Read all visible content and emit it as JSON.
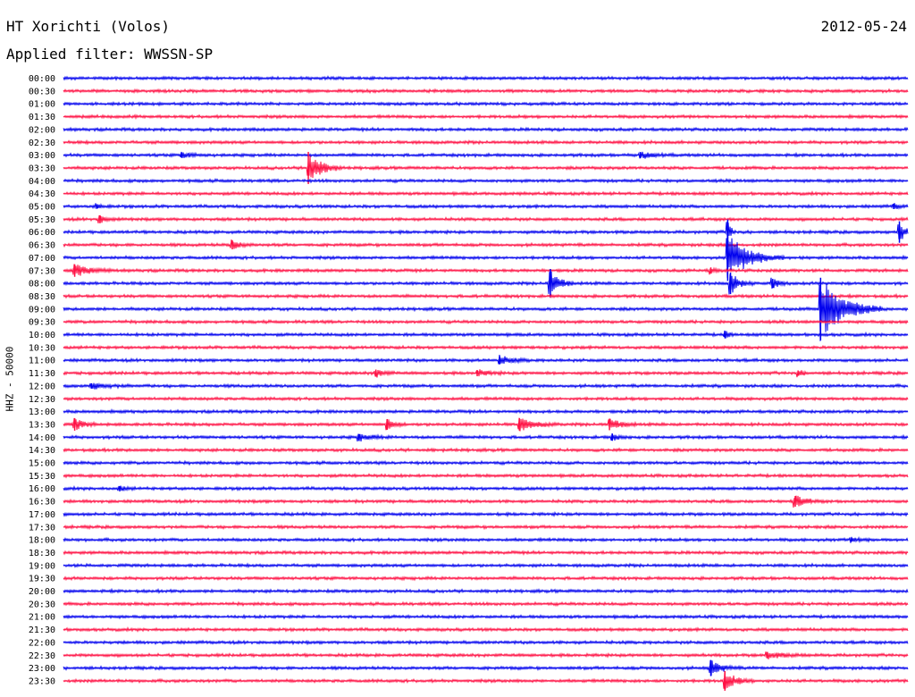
{
  "header": {
    "title": "HT Xorichti (Volos)",
    "date": "2012-05-24",
    "filter": "Applied filter: WWSSN-SP"
  },
  "side_label": "HHZ - 50000",
  "colors": {
    "even_row": "#0000ee",
    "odd_row": "#ff1144",
    "text": "#000000"
  },
  "chart_data": {
    "type": "line",
    "title": "HT Xorichti (Volos)",
    "xlabel": "",
    "ylabel": "HHZ - 50000",
    "rows": [
      "00:00",
      "00:30",
      "01:00",
      "01:30",
      "02:00",
      "02:30",
      "03:00",
      "03:30",
      "04:00",
      "04:30",
      "05:00",
      "05:30",
      "06:00",
      "06:30",
      "07:00",
      "07:30",
      "08:00",
      "08:30",
      "09:00",
      "09:30",
      "10:00",
      "10:30",
      "11:00",
      "11:30",
      "12:00",
      "12:30",
      "13:00",
      "13:30",
      "14:00",
      "14:30",
      "15:00",
      "15:30",
      "16:00",
      "16:30",
      "17:00",
      "17:30",
      "18:00",
      "18:30",
      "19:00",
      "19:30",
      "20:00",
      "20:30",
      "21:00",
      "21:30",
      "22:00",
      "22:30",
      "23:00",
      "23:30"
    ],
    "row_duration_min": 30,
    "grid": false,
    "events": [
      {
        "row": "03:00",
        "minute": 4.2,
        "amplitude": 0.3,
        "duration": 1.0
      },
      {
        "row": "03:00",
        "minute": 20.5,
        "amplitude": 0.35,
        "duration": 1.2
      },
      {
        "row": "03:30",
        "minute": 8.7,
        "amplitude": 1.8,
        "duration": 1.2
      },
      {
        "row": "05:00",
        "minute": 1.2,
        "amplitude": 0.25,
        "duration": 0.5
      },
      {
        "row": "05:00",
        "minute": 29.5,
        "amplitude": 0.3,
        "duration": 0.5
      },
      {
        "row": "05:30",
        "minute": 1.3,
        "amplitude": 0.45,
        "duration": 0.6
      },
      {
        "row": "06:00",
        "minute": 23.6,
        "amplitude": 1.4,
        "duration": 0.3
      },
      {
        "row": "06:00",
        "minute": 29.7,
        "amplitude": 1.2,
        "duration": 0.6
      },
      {
        "row": "06:30",
        "minute": 6.0,
        "amplitude": 0.5,
        "duration": 0.8
      },
      {
        "row": "07:00",
        "minute": 23.6,
        "amplitude": 2.6,
        "duration": 2.0
      },
      {
        "row": "07:30",
        "minute": 0.4,
        "amplitude": 0.7,
        "duration": 1.4
      },
      {
        "row": "07:30",
        "minute": 23.0,
        "amplitude": 0.35,
        "duration": 0.4
      },
      {
        "row": "08:00",
        "minute": 17.3,
        "amplitude": 1.6,
        "duration": 0.8
      },
      {
        "row": "08:00",
        "minute": 23.7,
        "amplitude": 1.2,
        "duration": 0.8
      },
      {
        "row": "08:00",
        "minute": 25.2,
        "amplitude": 0.5,
        "duration": 0.7
      },
      {
        "row": "09:00",
        "minute": 26.9,
        "amplitude": 3.5,
        "duration": 2.2
      },
      {
        "row": "10:00",
        "minute": 23.5,
        "amplitude": 0.4,
        "duration": 0.4
      },
      {
        "row": "11:00",
        "minute": 15.5,
        "amplitude": 0.45,
        "duration": 1.2
      },
      {
        "row": "11:30",
        "minute": 11.1,
        "amplitude": 0.4,
        "duration": 0.8
      },
      {
        "row": "11:30",
        "minute": 14.7,
        "amplitude": 0.35,
        "duration": 1.0
      },
      {
        "row": "11:30",
        "minute": 26.1,
        "amplitude": 0.3,
        "duration": 0.5
      },
      {
        "row": "12:00",
        "minute": 1.0,
        "amplitude": 0.3,
        "duration": 1.5
      },
      {
        "row": "13:30",
        "minute": 0.4,
        "amplitude": 0.7,
        "duration": 0.8
      },
      {
        "row": "13:30",
        "minute": 11.5,
        "amplitude": 0.6,
        "duration": 0.7
      },
      {
        "row": "13:30",
        "minute": 16.2,
        "amplitude": 0.7,
        "duration": 1.4
      },
      {
        "row": "13:30",
        "minute": 19.4,
        "amplitude": 0.65,
        "duration": 1.0
      },
      {
        "row": "14:00",
        "minute": 10.5,
        "amplitude": 0.35,
        "duration": 1.2
      },
      {
        "row": "14:00",
        "minute": 19.5,
        "amplitude": 0.4,
        "duration": 0.6
      },
      {
        "row": "16:00",
        "minute": 2.0,
        "amplitude": 0.25,
        "duration": 0.6
      },
      {
        "row": "16:30",
        "minute": 26.0,
        "amplitude": 0.6,
        "duration": 1.0
      },
      {
        "row": "18:00",
        "minute": 28.0,
        "amplitude": 0.2,
        "duration": 1.0
      },
      {
        "row": "22:30",
        "minute": 25.0,
        "amplitude": 0.35,
        "duration": 1.5
      },
      {
        "row": "23:00",
        "minute": 23.0,
        "amplitude": 0.9,
        "duration": 1.0
      },
      {
        "row": "23:30",
        "minute": 23.5,
        "amplitude": 1.1,
        "duration": 1.0
      }
    ]
  }
}
